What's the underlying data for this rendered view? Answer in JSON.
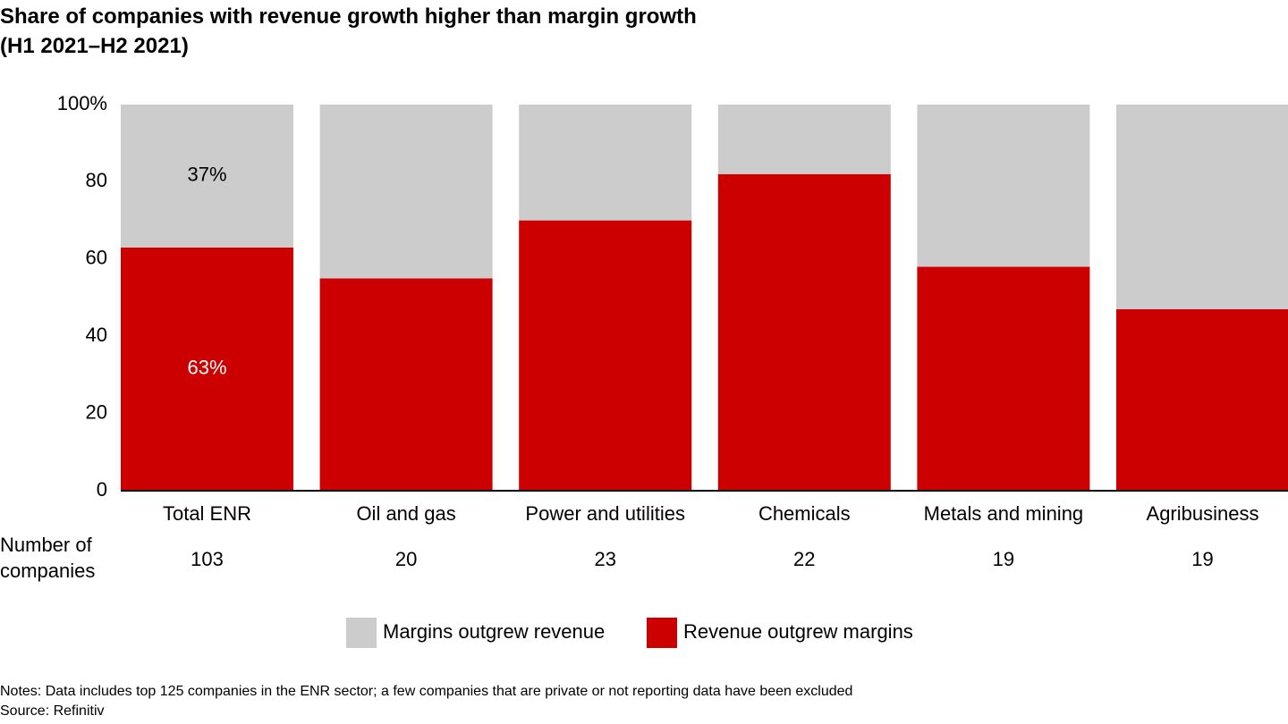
{
  "title_line1": "Share of companies with revenue growth higher than margin growth",
  "title_line2": "(H1 2021–H2 2021)",
  "chart_data": {
    "type": "bar",
    "stacked": true,
    "categories": [
      "Total ENR",
      "Oil and gas",
      "Power and utilities",
      "Chemicals",
      "Metals and mining",
      "Agribusiness"
    ],
    "series": [
      {
        "name": "Revenue outgrew margins",
        "color": "#cc0000",
        "values": [
          63,
          55,
          70,
          82,
          58,
          47
        ]
      },
      {
        "name": "Margins outgrew revenue",
        "color": "#cccccc",
        "values": [
          37,
          45,
          30,
          18,
          42,
          53
        ]
      }
    ],
    "data_labels": [
      {
        "category": "Total ENR",
        "series": "Margins outgrew revenue",
        "text": "37%"
      },
      {
        "category": "Total ENR",
        "series": "Revenue outgrew margins",
        "text": "63%"
      }
    ],
    "ylim": [
      0,
      100
    ],
    "yticks": [
      "0",
      "20",
      "40",
      "60",
      "80",
      "100%"
    ],
    "count_label_lines": [
      "Number of",
      "companies"
    ],
    "counts": [
      "103",
      "20",
      "23",
      "22",
      "19",
      "19"
    ],
    "legend": [
      "Margins outgrew revenue",
      "Revenue outgrew margins"
    ],
    "legend_placement": "bottom-center",
    "grid": false
  },
  "notes": "Notes: Data includes top 125 companies in the ENR sector; a few companies that are private or not reporting data have been excluded",
  "source": "Source: Refinitiv"
}
